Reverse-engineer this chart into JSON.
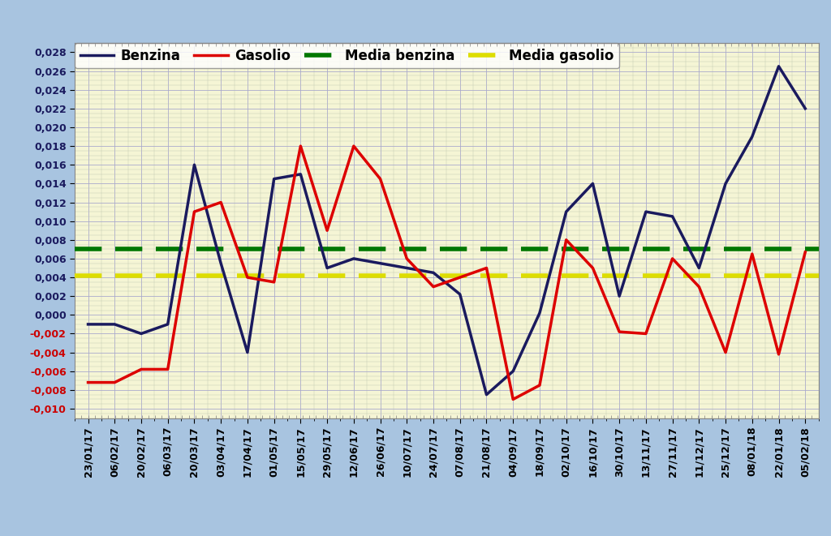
{
  "background_outer": "#a8c4e0",
  "background_inner": "#f5f5d5",
  "grid_color_minor": "#c8d8b0",
  "grid_color_major": "#8888aa",
  "ylim": [
    -0.011,
    0.029
  ],
  "yticks": [
    -0.01,
    -0.008,
    -0.006,
    -0.004,
    -0.002,
    0.0,
    0.002,
    0.004,
    0.006,
    0.008,
    0.01,
    0.012,
    0.014,
    0.016,
    0.018,
    0.02,
    0.022,
    0.024,
    0.026,
    0.028
  ],
  "media_benzina": 0.007,
  "media_gasolio": 0.0042,
  "benzina_color": "#1a1a5e",
  "gasolio_color": "#dd0000",
  "media_benzina_color": "#007700",
  "media_gasolio_color": "#dddd00",
  "dates": [
    "23/01/17",
    "06/02/17",
    "20/02/17",
    "06/03/17",
    "20/03/17",
    "03/04/17",
    "17/04/17",
    "01/05/17",
    "15/05/17",
    "29/05/17",
    "12/06/17",
    "26/06/17",
    "10/07/17",
    "24/07/17",
    "07/08/17",
    "21/08/17",
    "04/09/17",
    "18/09/17",
    "02/10/17",
    "16/10/17",
    "30/10/17",
    "13/11/17",
    "27/11/17",
    "11/12/17",
    "25/12/17",
    "08/01/18",
    "22/01/18",
    "05/02/18"
  ],
  "benzina": [
    -0.001,
    -0.001,
    -0.002,
    -0.001,
    0.016,
    0.0055,
    -0.004,
    0.0145,
    0.015,
    0.005,
    0.006,
    0.0055,
    0.005,
    0.0045,
    0.0022,
    -0.0085,
    -0.006,
    0.0002,
    0.011,
    0.014,
    0.002,
    0.011,
    0.0105,
    0.005,
    0.014,
    0.019,
    0.0265,
    0.022
  ],
  "gasolio": [
    -0.0072,
    -0.0072,
    -0.0058,
    -0.0058,
    0.011,
    0.012,
    0.004,
    0.0035,
    0.018,
    0.009,
    0.018,
    0.0145,
    0.006,
    0.003,
    0.004,
    0.005,
    -0.009,
    -0.0075,
    0.008,
    0.005,
    -0.0018,
    -0.002,
    0.006,
    0.003,
    -0.004,
    0.0065,
    -0.0042,
    0.0067
  ],
  "legend_labels": [
    "Benzina",
    "Gasolio",
    "Media benzina",
    "Media gasolio"
  ],
  "legend_fontsize": 12,
  "tick_fontsize": 9,
  "line_width": 2.5
}
